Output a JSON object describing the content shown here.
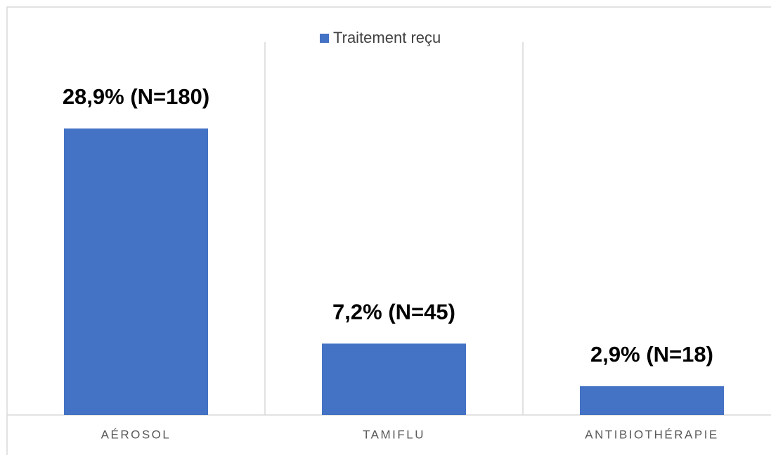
{
  "chart_data": {
    "type": "bar",
    "categories": [
      "AÉROSOL",
      "TAMIFLU",
      "ANTIBIOTHÉRAPIE"
    ],
    "series": [
      {
        "name": "Traitement reçu",
        "color": "#4472c4",
        "values": [
          28.9,
          7.2,
          2.9
        ],
        "value_labels": [
          "28,9% (N=180)",
          "7,2% (N=45)",
          "2,9% (N=18)"
        ]
      }
    ]
  }
}
